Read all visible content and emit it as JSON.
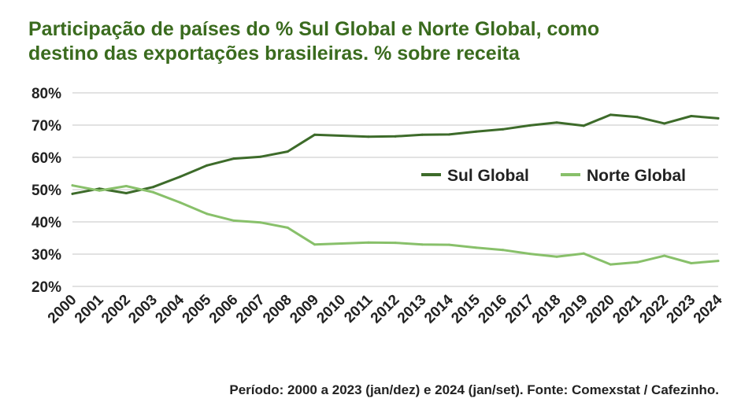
{
  "title_line1": "Participação de países do % Sul Global e Norte Global, como",
  "title_line2": "destino das exportações brasileiras. % sobre receita",
  "footer": "Período: 2000 a 2023 (jan/dez) e 2024 (jan/set). Fonte: Comexstat / Cafezinho.",
  "colors": {
    "title": "#3a6b1e",
    "sul": "#3d6b2a",
    "norte": "#88c06a",
    "grid": "#d9d9d9"
  },
  "chart_data": {
    "type": "line",
    "title": "Participação de países do % Sul Global e Norte Global, como destino das exportações brasileiras. % sobre receita",
    "xlabel": "",
    "ylabel": "",
    "ylim": [
      20,
      80
    ],
    "yticks": [
      "20%",
      "30%",
      "40%",
      "50%",
      "60%",
      "70%",
      "80%"
    ],
    "grid": true,
    "legend_position": "right",
    "categories": [
      "2000",
      "2001",
      "2002",
      "2003",
      "2004",
      "2005",
      "2006",
      "2007",
      "2008",
      "2009",
      "2010",
      "2011",
      "2012",
      "2013",
      "2014",
      "2015",
      "2016",
      "2017",
      "2018",
      "2019",
      "2020",
      "2021",
      "2022",
      "2023",
      "2024"
    ],
    "series": [
      {
        "name": "Sul Global",
        "color": "#3d6b2a",
        "values": [
          48.7,
          50.3,
          48.9,
          50.8,
          54.0,
          57.5,
          59.6,
          60.2,
          61.8,
          67.0,
          66.7,
          66.4,
          66.5,
          67.0,
          67.1,
          68.0,
          68.7,
          69.9,
          70.8,
          69.8,
          73.2,
          72.5,
          70.5,
          72.8,
          72.1
        ]
      },
      {
        "name": "Norte Global",
        "color": "#88c06a",
        "values": [
          51.3,
          49.7,
          51.1,
          49.2,
          46.0,
          42.5,
          40.4,
          39.8,
          38.2,
          33.0,
          33.3,
          33.6,
          33.5,
          33.0,
          32.9,
          32.0,
          31.3,
          30.1,
          29.2,
          30.2,
          26.8,
          27.5,
          29.5,
          27.2,
          27.9
        ]
      }
    ]
  }
}
